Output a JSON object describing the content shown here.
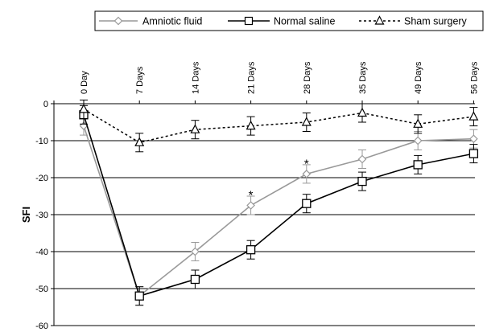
{
  "chart_data": {
    "type": "line",
    "categories": [
      "0 Day",
      "7 Days",
      "14 Days",
      "21 Days",
      "28 Days",
      "35 Days",
      "49 Days",
      "56 Days"
    ],
    "ylabel": "SFI",
    "ylim": [
      -60,
      0
    ],
    "yticks": [
      0,
      -10,
      -20,
      -30,
      -40,
      -50,
      -60
    ],
    "grid": "horizontal",
    "legend_position": "top",
    "series": [
      {
        "name": "Amniotic fluid",
        "color": "#999999",
        "marker": "diamond",
        "line_style": "solid",
        "values": [
          -6,
          -52,
          -40,
          -27.5,
          -19,
          -15,
          -10,
          -9.5
        ],
        "error": [
          2.5,
          2.5,
          2.5,
          2.5,
          2.5,
          2.5,
          2.5,
          2.5
        ]
      },
      {
        "name": "Normal saline",
        "color": "#000000",
        "marker": "square",
        "line_style": "solid",
        "values": [
          -3,
          -52,
          -47.5,
          -39.5,
          -27,
          -21,
          -16.5,
          -13.5
        ],
        "error": [
          2.5,
          2.5,
          2.5,
          2.5,
          2.5,
          2.5,
          2.5,
          2.5
        ]
      },
      {
        "name": "Sham surgery",
        "color": "#000000",
        "marker": "triangle",
        "line_style": "dotted",
        "values": [
          -1.5,
          -10.5,
          -7,
          -6,
          -5,
          -2.5,
          -5.5,
          -3.5
        ],
        "error": [
          2.5,
          2.5,
          2.5,
          2.5,
          2.5,
          2.5,
          2.5,
          2.5
        ]
      }
    ],
    "annotations": [
      {
        "text": "*",
        "category": "21 Days",
        "y": -24.5
      },
      {
        "text": "*",
        "category": "28 Days",
        "y": -16
      }
    ]
  }
}
